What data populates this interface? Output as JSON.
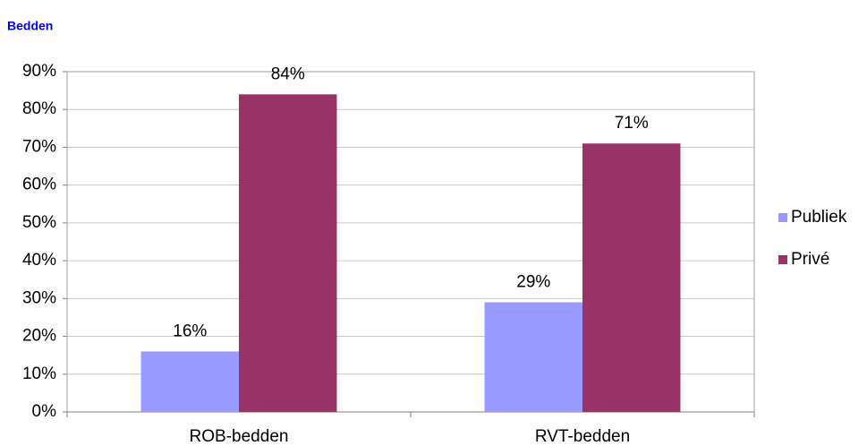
{
  "chart_data": {
    "type": "bar",
    "title": "Bedden",
    "categories": [
      "ROB-bedden",
      "RVT-bedden"
    ],
    "series": [
      {
        "name": "Publiek",
        "color": "#9999ff",
        "values": [
          16,
          29
        ],
        "value_labels": [
          "16%",
          "29%"
        ]
      },
      {
        "name": "Privé",
        "color": "#993366",
        "values": [
          84,
          71
        ],
        "value_labels": [
          "84%",
          "71%"
        ]
      }
    ],
    "ylim": [
      0,
      90
    ],
    "yticks": [
      {
        "value": 0,
        "label": "0%"
      },
      {
        "value": 10,
        "label": "10%"
      },
      {
        "value": 20,
        "label": "20%"
      },
      {
        "value": 30,
        "label": "30%"
      },
      {
        "value": 40,
        "label": "40%"
      },
      {
        "value": 50,
        "label": "50%"
      },
      {
        "value": 60,
        "label": "60%"
      },
      {
        "value": 70,
        "label": "70%"
      },
      {
        "value": 80,
        "label": "80%"
      },
      {
        "value": 90,
        "label": "90%"
      }
    ],
    "grid": true,
    "legend": "right"
  }
}
